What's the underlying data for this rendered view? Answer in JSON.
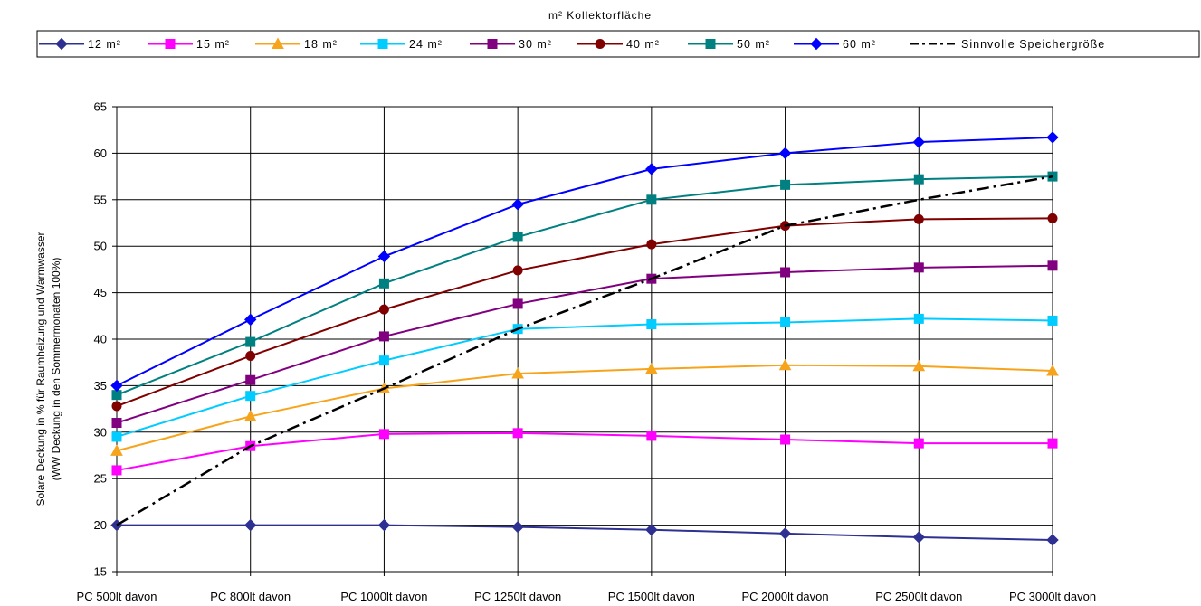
{
  "chart_data": {
    "type": "line",
    "title": "m² Kollektorfläche",
    "ylabel_line1": "Solare Deckung in % für Raumheizung und Warmwasser",
    "ylabel_line2": "(WW Deckung in den Sommermonaten 100%)",
    "xlabel": "",
    "categories": [
      "PC 500lt davon",
      "PC 800lt davon",
      "PC 1000lt davon",
      "PC 1250lt davon",
      "PC 1500lt davon",
      "PC 2000lt davon",
      "PC 2500lt davon",
      "PC 3000lt davon"
    ],
    "ylim": [
      15,
      65
    ],
    "yticks": [
      15,
      20,
      25,
      30,
      35,
      40,
      45,
      50,
      55,
      60,
      65
    ],
    "grid": true,
    "legend_position": "top",
    "series": [
      {
        "name": "12 m²",
        "color": "#2E3192",
        "marker": "diamond",
        "values": [
          20,
          20,
          20,
          19.8,
          19.5,
          19.1,
          18.7,
          18.4
        ]
      },
      {
        "name": "15 m²",
        "color": "#FF00FF",
        "marker": "square",
        "values": [
          25.9,
          28.5,
          29.8,
          29.9,
          29.6,
          29.2,
          28.8,
          28.8
        ]
      },
      {
        "name": "18 m²",
        "color": "#F7A41D",
        "marker": "triangle",
        "values": [
          28,
          31.7,
          34.7,
          36.3,
          36.8,
          37.2,
          37.1,
          36.6
        ]
      },
      {
        "name": "24 m²",
        "color": "#00CCFF",
        "marker": "square",
        "values": [
          29.5,
          33.9,
          37.7,
          41.1,
          41.6,
          41.8,
          42.2,
          42
        ]
      },
      {
        "name": "30 m²",
        "color": "#800080",
        "marker": "square",
        "values": [
          31,
          35.6,
          40.3,
          43.8,
          46.5,
          47.2,
          47.7,
          47.9
        ]
      },
      {
        "name": "40 m²",
        "color": "#800000",
        "marker": "circle",
        "values": [
          32.8,
          38.2,
          43.2,
          47.4,
          50.2,
          52.2,
          52.9,
          53
        ]
      },
      {
        "name": "50 m²",
        "color": "#008080",
        "marker": "square",
        "values": [
          34,
          39.7,
          46,
          51,
          55,
          56.6,
          57.2,
          57.5
        ]
      },
      {
        "name": "60 m²",
        "color": "#0000FF",
        "marker": "diamond",
        "values": [
          35,
          42.1,
          48.9,
          54.5,
          58.3,
          60,
          61.2,
          61.7
        ]
      },
      {
        "name": "Sinnvolle Speichergröße",
        "color": "#000000",
        "marker": "none",
        "dashed": true,
        "values": [
          20,
          28.5,
          34.7,
          41.1,
          46.5,
          52.2,
          55,
          57.5
        ]
      }
    ]
  }
}
